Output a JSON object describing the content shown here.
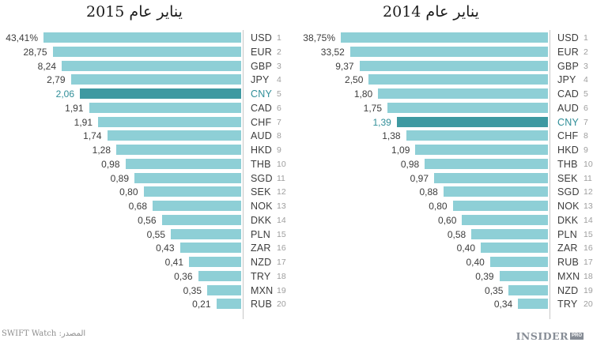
{
  "charts": [
    {
      "title": "يناير عام 2015",
      "rows": [
        {
          "value": "43,41%",
          "code": "USD",
          "rank": "1",
          "highlight": false
        },
        {
          "value": "28,75",
          "code": "EUR",
          "rank": "2",
          "highlight": false
        },
        {
          "value": "8,24",
          "code": "GBP",
          "rank": "3",
          "highlight": false
        },
        {
          "value": "2,79",
          "code": "JPY",
          "rank": "4",
          "highlight": false
        },
        {
          "value": "2,06",
          "code": "CNY",
          "rank": "5",
          "highlight": true
        },
        {
          "value": "1,91",
          "code": "CAD",
          "rank": "6",
          "highlight": false
        },
        {
          "value": "1,91",
          "code": "CHF",
          "rank": "7",
          "highlight": false
        },
        {
          "value": "1,74",
          "code": "AUD",
          "rank": "8",
          "highlight": false
        },
        {
          "value": "1,28",
          "code": "HKD",
          "rank": "9",
          "highlight": false
        },
        {
          "value": "0,98",
          "code": "THB",
          "rank": "10",
          "highlight": false
        },
        {
          "value": "0,89",
          "code": "SGD",
          "rank": "11",
          "highlight": false
        },
        {
          "value": "0,80",
          "code": "SEK",
          "rank": "12",
          "highlight": false
        },
        {
          "value": "0,68",
          "code": "NOK",
          "rank": "13",
          "highlight": false
        },
        {
          "value": "0,56",
          "code": "DKK",
          "rank": "14",
          "highlight": false
        },
        {
          "value": "0,55",
          "code": "PLN",
          "rank": "15",
          "highlight": false
        },
        {
          "value": "0,43",
          "code": "ZAR",
          "rank": "16",
          "highlight": false
        },
        {
          "value": "0,41",
          "code": "NZD",
          "rank": "17",
          "highlight": false
        },
        {
          "value": "0,36",
          "code": "TRY",
          "rank": "18",
          "highlight": false
        },
        {
          "value": "0,35",
          "code": "MXN",
          "rank": "19",
          "highlight": false
        },
        {
          "value": "0,21",
          "code": "RUB",
          "rank": "20",
          "highlight": false
        }
      ]
    },
    {
      "title": "يناير عام 2014",
      "rows": [
        {
          "value": "38,75%",
          "code": "USD",
          "rank": "1",
          "highlight": false
        },
        {
          "value": "33,52",
          "code": "EUR",
          "rank": "2",
          "highlight": false
        },
        {
          "value": "9,37",
          "code": "GBP",
          "rank": "3",
          "highlight": false
        },
        {
          "value": "2,50",
          "code": "JPY",
          "rank": "4",
          "highlight": false
        },
        {
          "value": "1,80",
          "code": "CAD",
          "rank": "5",
          "highlight": false
        },
        {
          "value": "1,75",
          "code": "AUD",
          "rank": "6",
          "highlight": false
        },
        {
          "value": "1,39",
          "code": "CNY",
          "rank": "7",
          "highlight": true
        },
        {
          "value": "1,38",
          "code": "CHF",
          "rank": "8",
          "highlight": false
        },
        {
          "value": "1,09",
          "code": "HKD",
          "rank": "9",
          "highlight": false
        },
        {
          "value": "0,98",
          "code": "THB",
          "rank": "10",
          "highlight": false
        },
        {
          "value": "0,97",
          "code": "SEK",
          "rank": "11",
          "highlight": false
        },
        {
          "value": "0,88",
          "code": "SGD",
          "rank": "12",
          "highlight": false
        },
        {
          "value": "0,80",
          "code": "NOK",
          "rank": "13",
          "highlight": false
        },
        {
          "value": "0,60",
          "code": "DKK",
          "rank": "14",
          "highlight": false
        },
        {
          "value": "0,58",
          "code": "PLN",
          "rank": "15",
          "highlight": false
        },
        {
          "value": "0,40",
          "code": "ZAR",
          "rank": "16",
          "highlight": false
        },
        {
          "value": "0,40",
          "code": "RUB",
          "rank": "17",
          "highlight": false
        },
        {
          "value": "0,39",
          "code": "MXN",
          "rank": "18",
          "highlight": false
        },
        {
          "value": "0,35",
          "code": "NZD",
          "rank": "19",
          "highlight": false
        },
        {
          "value": "0,34",
          "code": "TRY",
          "rank": "20",
          "highlight": false
        }
      ]
    }
  ],
  "footer": {
    "source": "المصدر: SWIFT Watch",
    "logo_text": "INSIDER",
    "logo_badge": "PRO"
  },
  "colors": {
    "bar": "#8ecfd6",
    "bar_highlight": "#3e99a1",
    "highlight_text": "#2f8e98",
    "axis": "#c7c7c7",
    "label": "#3d3d3d",
    "rank": "#9e9e9e"
  },
  "chart_data": [
    {
      "type": "bar",
      "orientation": "horizontal",
      "title": "يناير عام 2015",
      "categories": [
        "USD",
        "EUR",
        "GBP",
        "JPY",
        "CNY",
        "CAD",
        "CHF",
        "AUD",
        "HKD",
        "THB",
        "SGD",
        "SEK",
        "NOK",
        "DKK",
        "PLN",
        "ZAR",
        "NZD",
        "TRY",
        "MXN",
        "RUB"
      ],
      "values": [
        43.41,
        28.75,
        8.24,
        2.79,
        2.06,
        1.91,
        1.91,
        1.74,
        1.28,
        0.98,
        0.89,
        0.8,
        0.68,
        0.56,
        0.55,
        0.43,
        0.41,
        0.36,
        0.35,
        0.21
      ],
      "unit": "%",
      "highlight_category": "CNY",
      "legend": "none",
      "grid": false,
      "note": "ranked list; bar length encodes rank (staircase), value labels at bar start, ranks 1-20 at right"
    },
    {
      "type": "bar",
      "orientation": "horizontal",
      "title": "يناير عام 2014",
      "categories": [
        "USD",
        "EUR",
        "GBP",
        "JPY",
        "CAD",
        "AUD",
        "CNY",
        "CHF",
        "HKD",
        "THB",
        "SEK",
        "SGD",
        "NOK",
        "DKK",
        "PLN",
        "ZAR",
        "RUB",
        "MXN",
        "NZD",
        "TRY"
      ],
      "values": [
        38.75,
        33.52,
        9.37,
        2.5,
        1.8,
        1.75,
        1.39,
        1.38,
        1.09,
        0.98,
        0.97,
        0.88,
        0.8,
        0.6,
        0.58,
        0.4,
        0.4,
        0.39,
        0.35,
        0.34
      ],
      "unit": "%",
      "highlight_category": "CNY",
      "legend": "none",
      "grid": false,
      "note": "ranked list; bar length encodes rank (staircase), value labels at bar start, ranks 1-20 at right"
    }
  ]
}
